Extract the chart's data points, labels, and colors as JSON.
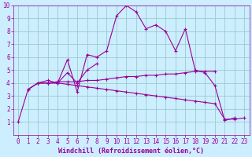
{
  "bg_color": "#cceeff",
  "grid_color": "#99cccc",
  "line_color": "#990099",
  "xlabel": "Windchill (Refroidissement éolien,°C)",
  "xlim": [
    -0.5,
    23.5
  ],
  "ylim": [
    0,
    10
  ],
  "yticks": [
    1,
    2,
    3,
    4,
    5,
    6,
    7,
    8,
    9,
    10
  ],
  "xticks": [
    0,
    1,
    2,
    3,
    4,
    5,
    6,
    7,
    8,
    9,
    10,
    11,
    12,
    13,
    14,
    15,
    16,
    17,
    18,
    19,
    20,
    21,
    22,
    23
  ],
  "curve1_x": [
    0,
    1,
    2,
    3,
    4,
    5,
    6,
    7,
    8,
    9,
    10,
    11,
    12,
    13,
    14,
    15,
    16,
    17,
    18,
    19,
    20,
    21,
    22
  ],
  "curve1_y": [
    1.0,
    3.5,
    4.0,
    4.0,
    4.0,
    5.8,
    3.3,
    6.2,
    6.0,
    6.5,
    9.2,
    10.0,
    9.5,
    8.2,
    8.5,
    8.0,
    6.5,
    8.2,
    5.0,
    4.8,
    3.8,
    1.1,
    1.3
  ],
  "curve2_x": [
    2,
    3,
    4,
    5,
    6,
    7,
    8
  ],
  "curve2_y": [
    4.0,
    4.2,
    4.0,
    4.8,
    4.0,
    5.0,
    5.5
  ],
  "curve3_x": [
    1,
    2,
    3,
    4,
    5,
    6,
    7,
    8,
    9,
    10,
    11,
    12,
    13,
    14,
    15,
    16,
    17,
    18,
    19,
    20
  ],
  "curve3_y": [
    3.5,
    4.0,
    4.0,
    4.1,
    4.1,
    4.1,
    4.2,
    4.2,
    4.3,
    4.4,
    4.5,
    4.5,
    4.6,
    4.6,
    4.7,
    4.7,
    4.8,
    4.9,
    4.9,
    4.9
  ],
  "curve4_x": [
    1,
    2,
    3,
    4,
    5,
    6,
    7,
    8,
    9,
    10,
    11,
    12,
    13,
    14,
    15,
    16,
    17,
    18,
    19,
    20,
    21,
    22,
    23
  ],
  "curve4_y": [
    3.5,
    4.0,
    4.0,
    4.0,
    3.9,
    3.8,
    3.7,
    3.6,
    3.5,
    3.4,
    3.3,
    3.2,
    3.1,
    3.0,
    2.9,
    2.8,
    2.7,
    2.6,
    2.5,
    2.4,
    1.2,
    1.2,
    1.3
  ],
  "xlabel_fontsize": 6,
  "tick_fontsize": 5.5
}
